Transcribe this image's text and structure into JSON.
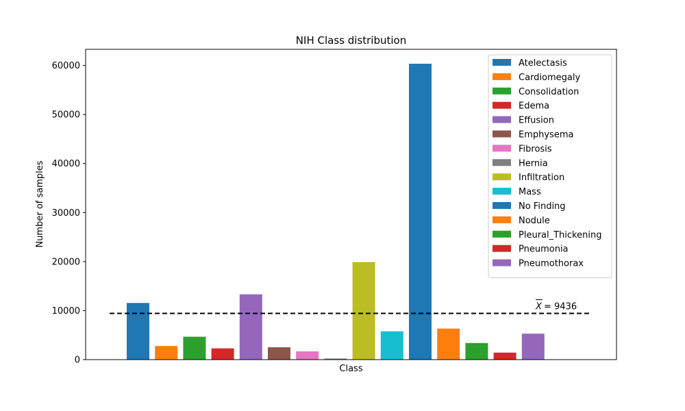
{
  "chart_data": {
    "type": "bar",
    "title": "NIH Class distribution",
    "xlabel": "Class",
    "ylabel": "Number of samples",
    "ylim": [
      0,
      63300
    ],
    "yticks": [
      0,
      10000,
      20000,
      30000,
      40000,
      50000,
      60000
    ],
    "ytick_labels": [
      "0",
      "10000",
      "20000",
      "30000",
      "40000",
      "50000",
      "60000"
    ],
    "grid": false,
    "legend_position": "top-right",
    "categories": [
      "Atelectasis",
      "Cardiomegaly",
      "Consolidation",
      "Edema",
      "Effusion",
      "Emphysema",
      "Fibrosis",
      "Hernia",
      "Infiltration",
      "Mass",
      "No Finding",
      "Nodule",
      "Pleural_Thickening",
      "Pneumonia",
      "Pneumothorax"
    ],
    "values": [
      11560,
      2780,
      4670,
      2300,
      13320,
      2520,
      1690,
      230,
      19900,
      5780,
      60360,
      6330,
      3390,
      1430,
      5300
    ],
    "colors": [
      "#1f77b4",
      "#ff7f0e",
      "#2ca02c",
      "#d62728",
      "#9467bd",
      "#8c564b",
      "#e377c2",
      "#7f7f7f",
      "#bcbd22",
      "#17becf",
      "#1f77b4",
      "#ff7f0e",
      "#2ca02c",
      "#d62728",
      "#9467bd"
    ],
    "mean_line": {
      "value": 9436,
      "label": "= 9436",
      "symbol": "X",
      "style": "dashed",
      "color": "#000000"
    }
  }
}
